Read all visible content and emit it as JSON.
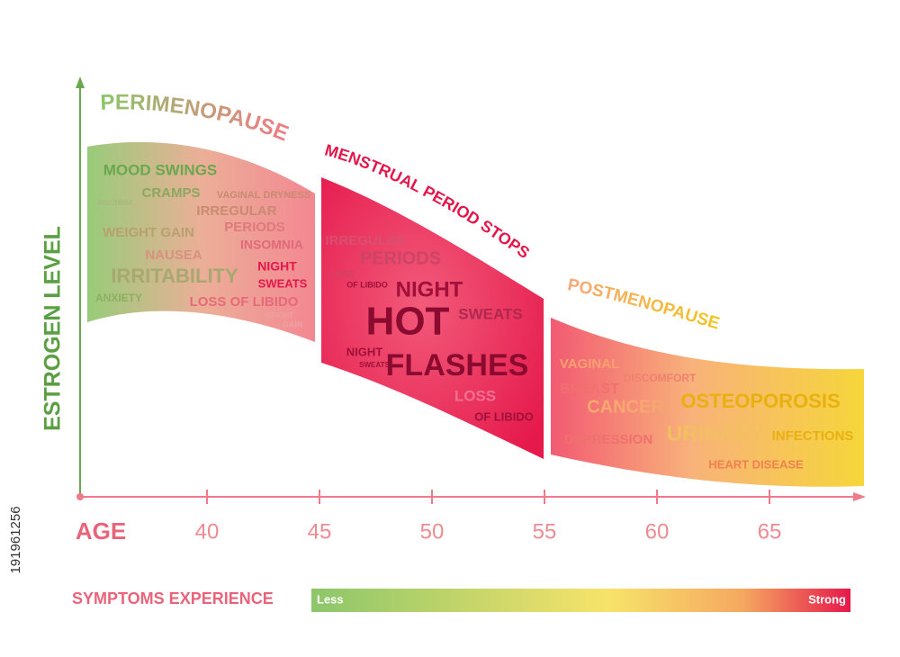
{
  "y_axis_label": "ESTROGEN LEVEL",
  "x_axis_label": "AGE",
  "x_ticks": [
    40,
    45,
    50,
    55,
    60,
    65
  ],
  "phases": [
    {
      "title": "PERIMENOPAUSE",
      "symptoms": [
        "MOOD SWINGS",
        "INSOMNIA",
        "CRAMPS",
        "VAGINAL DRYNESS",
        "IRREGULAR",
        "WEIGHT GAIN",
        "PERIODS",
        "NAUSEA",
        "INSOMNIA",
        "IRRITABILITY",
        "NIGHT",
        "SWEATS",
        "ANXIETY",
        "LOSS OF LIBIDO",
        "WEIGHT",
        "GAIN"
      ]
    },
    {
      "title": "MENSTRUAL PERIOD STOPS",
      "symptoms": [
        "IRREGULAR",
        "PERIODS",
        "LOSS",
        "OF LIBIDO",
        "NIGHT",
        "HOT",
        "SWEATS",
        "NIGHT",
        "SWEATS",
        "FLASHES",
        "LOSS",
        "OF LIBIDO"
      ]
    },
    {
      "title": "POSTMENOPAUSE",
      "symptoms": [
        "VAGINAL",
        "DISCOMFORT",
        "BREAST",
        "CANCER",
        "OSTEOPOROSIS",
        "DEPRESSION",
        "URINARY",
        "INFECTIONS",
        "HEART DISEASE"
      ]
    }
  ],
  "legend": {
    "title": "SYMPTOMS EXPERIENCE",
    "low": "Less",
    "high": "Strong"
  },
  "watermark": "191961256"
}
